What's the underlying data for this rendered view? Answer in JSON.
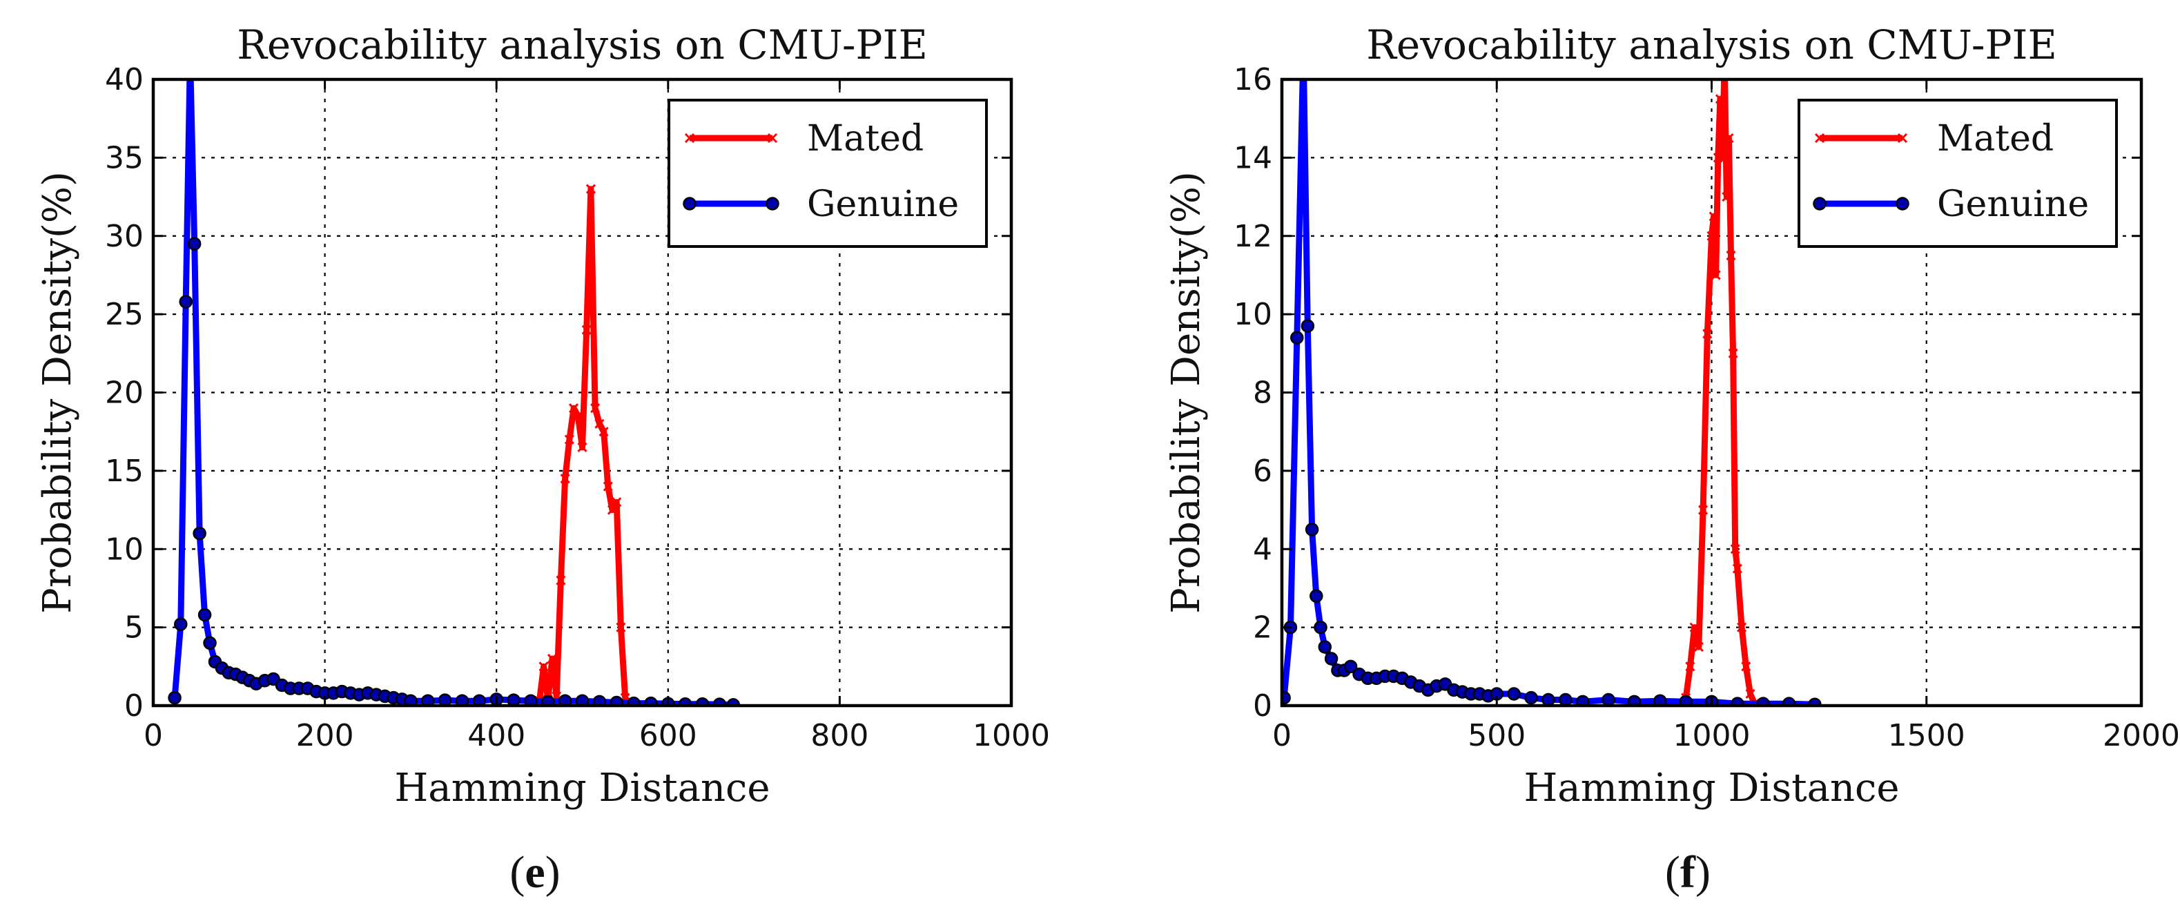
{
  "chart_data": [
    {
      "type": "line",
      "title": "Revocability analysis on CMU-PIE",
      "xlabel": "Hamming Distance",
      "ylabel": "Probability Density(%)",
      "xlim": [
        0,
        1000
      ],
      "ylim": [
        0,
        40
      ],
      "xticks": [
        0,
        200,
        400,
        600,
        800,
        1000
      ],
      "yticks": [
        0,
        5,
        10,
        15,
        20,
        25,
        30,
        35,
        40
      ],
      "xtick_labels": [
        "0",
        "200",
        "400",
        "600",
        "800",
        "1000"
      ],
      "ytick_labels": [
        "0",
        "5",
        "10",
        "15",
        "20",
        "25",
        "30",
        "35",
        "40"
      ],
      "grid": true,
      "legend_position": "top-right",
      "caption_letter": "e",
      "series": [
        {
          "name": "Mated",
          "color": "#ff0000",
          "marker": "x",
          "x": [
            450,
            455,
            460,
            465,
            470,
            475,
            480,
            485,
            490,
            495,
            500,
            505,
            510,
            515,
            520,
            525,
            530,
            535,
            540,
            545,
            550,
            555
          ],
          "y": [
            0.3,
            2.5,
            0.4,
            3.0,
            0.6,
            8.0,
            14.5,
            17.0,
            19.0,
            18.5,
            16.5,
            24.0,
            33.0,
            19.0,
            18.0,
            17.5,
            14.0,
            12.5,
            13.0,
            5.0,
            0.5,
            0.1
          ]
        },
        {
          "name": "Genuine",
          "color": "#0000ff",
          "marker": "o",
          "x": [
            25,
            32,
            38,
            43,
            48,
            54,
            60,
            66,
            72,
            80,
            88,
            96,
            104,
            112,
            120,
            130,
            140,
            150,
            160,
            170,
            180,
            190,
            200,
            210,
            220,
            230,
            240,
            250,
            260,
            270,
            280,
            290,
            300,
            320,
            340,
            360,
            380,
            400,
            420,
            440,
            460,
            480,
            500,
            520,
            540,
            560,
            580,
            600,
            620,
            640,
            660,
            676
          ],
          "y": [
            0.5,
            5.2,
            25.8,
            41.5,
            29.5,
            11.0,
            5.8,
            4.0,
            2.8,
            2.4,
            2.1,
            2.0,
            1.8,
            1.6,
            1.4,
            1.6,
            1.7,
            1.3,
            1.1,
            1.1,
            1.1,
            0.9,
            0.8,
            0.8,
            0.9,
            0.8,
            0.7,
            0.8,
            0.7,
            0.6,
            0.5,
            0.4,
            0.3,
            0.3,
            0.35,
            0.3,
            0.3,
            0.4,
            0.35,
            0.3,
            0.25,
            0.3,
            0.3,
            0.25,
            0.2,
            0.15,
            0.15,
            0.12,
            0.1,
            0.1,
            0.08,
            0.05
          ]
        }
      ]
    },
    {
      "type": "line",
      "title": "Revocability analysis on CMU-PIE",
      "xlabel": "Hamming Distance",
      "ylabel": "Probability Density(%)",
      "xlim": [
        0,
        2000
      ],
      "ylim": [
        0,
        16
      ],
      "xticks": [
        0,
        500,
        1000,
        1500,
        2000
      ],
      "yticks": [
        0,
        2,
        4,
        6,
        8,
        10,
        12,
        14,
        16
      ],
      "xtick_labels": [
        "0",
        "500",
        "1000",
        "1500",
        "2000"
      ],
      "ytick_labels": [
        "0",
        "2",
        "4",
        "6",
        "8",
        "10",
        "12",
        "14",
        "16"
      ],
      "grid": true,
      "legend_position": "top-right",
      "caption_letter": "f",
      "series": [
        {
          "name": "Mated",
          "color": "#ff0000",
          "marker": "x",
          "x": [
            940,
            950,
            960,
            970,
            980,
            990,
            1000,
            1005,
            1010,
            1015,
            1020,
            1025,
            1030,
            1035,
            1040,
            1045,
            1050,
            1055,
            1060,
            1070,
            1080,
            1090,
            1100
          ],
          "y": [
            0.2,
            1.0,
            2.0,
            1.5,
            5.0,
            9.5,
            12.0,
            12.5,
            11.0,
            14.0,
            15.5,
            14.0,
            16.5,
            13.0,
            14.5,
            11.5,
            9.0,
            4.0,
            3.5,
            2.0,
            1.0,
            0.3,
            0.05
          ]
        },
        {
          "name": "Genuine",
          "color": "#0000ff",
          "marker": "o",
          "x": [
            5,
            20,
            35,
            50,
            60,
            70,
            80,
            90,
            100,
            115,
            130,
            145,
            160,
            180,
            200,
            220,
            240,
            260,
            280,
            300,
            320,
            340,
            360,
            380,
            400,
            420,
            440,
            460,
            480,
            500,
            540,
            580,
            620,
            660,
            700,
            760,
            820,
            880,
            940,
            1000,
            1060,
            1120,
            1180,
            1240
          ],
          "y": [
            0.2,
            2.0,
            9.4,
            16.8,
            9.7,
            4.5,
            2.8,
            2.0,
            1.5,
            1.2,
            0.9,
            0.9,
            1.0,
            0.8,
            0.7,
            0.7,
            0.75,
            0.75,
            0.7,
            0.6,
            0.5,
            0.4,
            0.5,
            0.55,
            0.4,
            0.35,
            0.3,
            0.3,
            0.25,
            0.3,
            0.3,
            0.2,
            0.15,
            0.15,
            0.1,
            0.15,
            0.1,
            0.12,
            0.1,
            0.1,
            0.05,
            0.05,
            0.05,
            0.03
          ]
        }
      ]
    }
  ]
}
